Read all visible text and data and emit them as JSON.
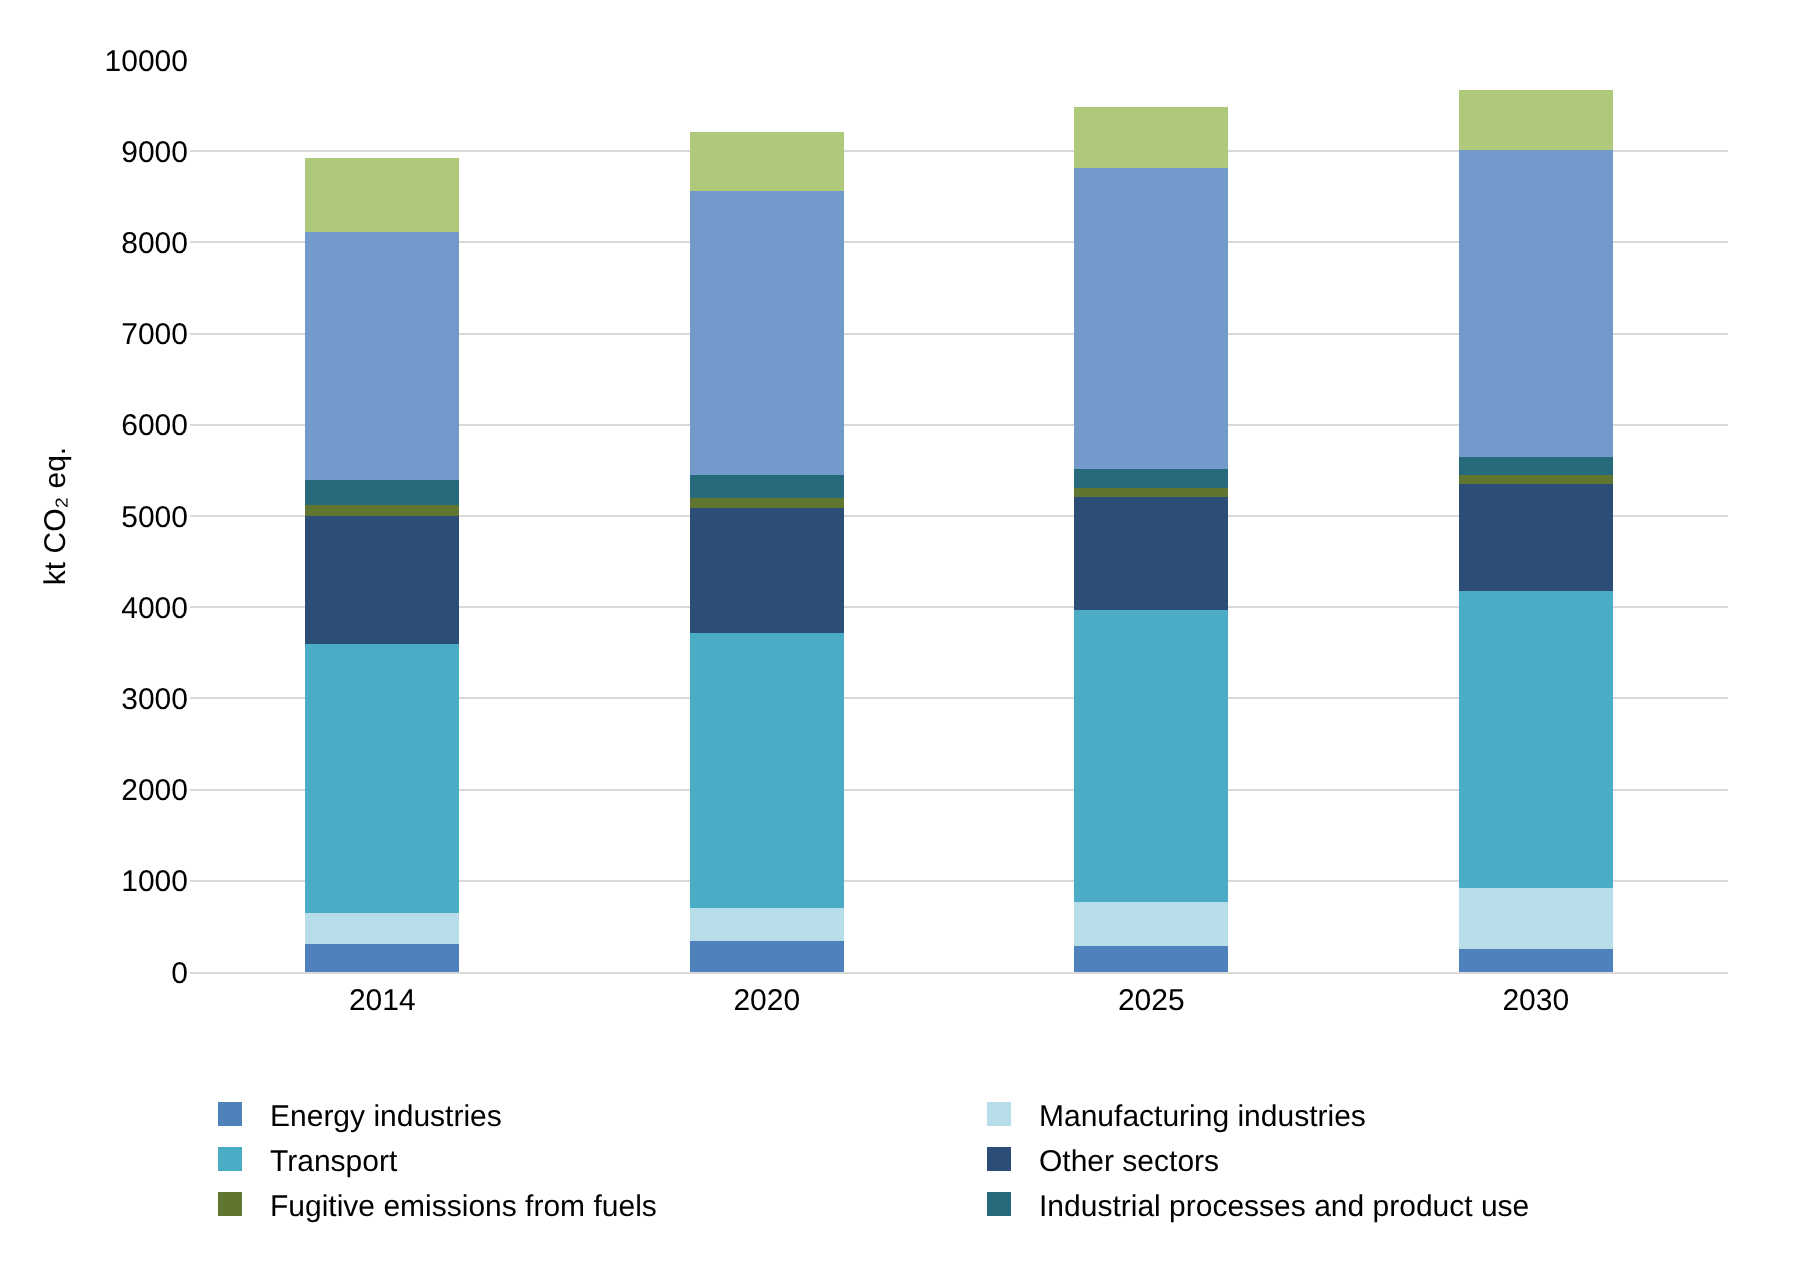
{
  "chart_data": {
    "type": "bar",
    "stacked": true,
    "ylabel": "kt CO₂ eq.",
    "categories": [
      "2014",
      "2020",
      "2025",
      "2030"
    ],
    "series": [
      {
        "name": "Energy industries",
        "color": "#4f81bd",
        "values": [
          310,
          340,
          280,
          250
        ]
      },
      {
        "name": "Manufacturing industries",
        "color": "#b7dde8",
        "values": [
          340,
          360,
          490,
          670
        ]
      },
      {
        "name": "Transport",
        "color": "#4bacc6",
        "values": [
          2950,
          3020,
          3200,
          3260
        ]
      },
      {
        "name": "Other sectors",
        "color": "#2c4d75",
        "values": [
          1400,
          1370,
          1240,
          1170
        ]
      },
      {
        "name": "Fugitive emissions from fuels",
        "color": "#5f7530",
        "values": [
          120,
          110,
          100,
          100
        ]
      },
      {
        "name": "Industrial processes and product use",
        "color": "#276a7c",
        "values": [
          280,
          250,
          200,
          200
        ]
      },
      {
        "color": "#729aca",
        "values": [
          2710,
          3110,
          3310,
          3360
        ]
      },
      {
        "color": "#afc97a",
        "values": [
          820,
          650,
          660,
          660
        ]
      }
    ],
    "ylim": [
      0,
      10000
    ],
    "yticks": [
      0,
      1000,
      2000,
      3000,
      4000,
      5000,
      6000,
      7000,
      8000,
      9000,
      10000
    ],
    "grid": "y",
    "legend": "bottom"
  }
}
